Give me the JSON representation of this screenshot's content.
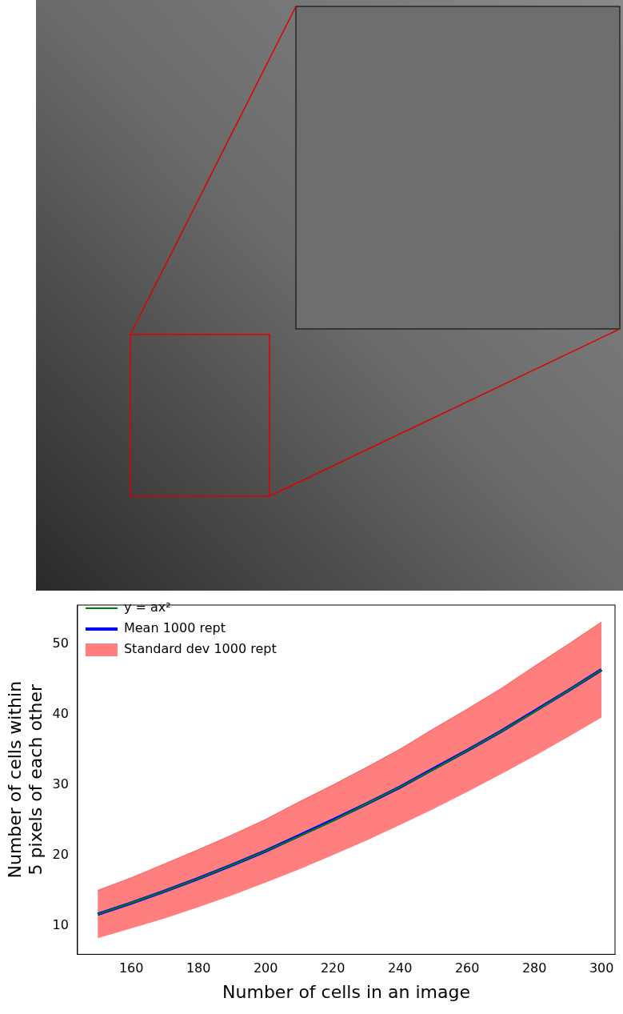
{
  "chart_data": {
    "type": "line",
    "x_label": "Number of cells in an image",
    "y_label": [
      "Number of cells within",
      "5 pixels of each other"
    ],
    "x": [
      150,
      160,
      170,
      180,
      190,
      200,
      210,
      220,
      230,
      240,
      250,
      260,
      270,
      280,
      290,
      300
    ],
    "series": [
      {
        "name": "Mean 1000 rept",
        "color": "#0000ff",
        "type": "line",
        "values": [
          11.6,
          13.2,
          14.9,
          16.7,
          18.6,
          20.6,
          22.8,
          25.0,
          27.3,
          29.7,
          32.3,
          34.9,
          37.6,
          40.5,
          43.4,
          46.4
        ]
      },
      {
        "name": "y = ax²",
        "color": "#008000",
        "type": "line",
        "values": [
          11.6,
          13.2,
          14.9,
          16.7,
          18.6,
          20.6,
          22.7,
          24.9,
          27.3,
          29.7,
          32.2,
          34.9,
          37.6,
          40.4,
          43.4,
          46.4
        ]
      },
      {
        "name": "Standard dev 1000 rept",
        "color": "#ff0000",
        "type": "area",
        "lower": [
          8.2,
          9.6,
          11.0,
          12.6,
          14.3,
          16.1,
          18.0,
          20.0,
          22.1,
          24.3,
          26.6,
          29.0,
          31.5,
          34.1,
          36.8,
          39.6
        ],
        "upper": [
          15.0,
          16.8,
          18.8,
          20.8,
          22.9,
          25.1,
          27.6,
          30.0,
          32.5,
          35.1,
          38.0,
          40.8,
          43.7,
          46.9,
          50.0,
          53.2
        ]
      }
    ],
    "xlim": [
      144,
      304
    ],
    "ylim": [
      5.9,
      55.6
    ],
    "xticks": [
      160,
      180,
      200,
      220,
      240,
      260,
      280,
      300
    ],
    "yticks": [
      10,
      20,
      30,
      40,
      50
    ],
    "grid": false,
    "legend": "upper left"
  }
}
